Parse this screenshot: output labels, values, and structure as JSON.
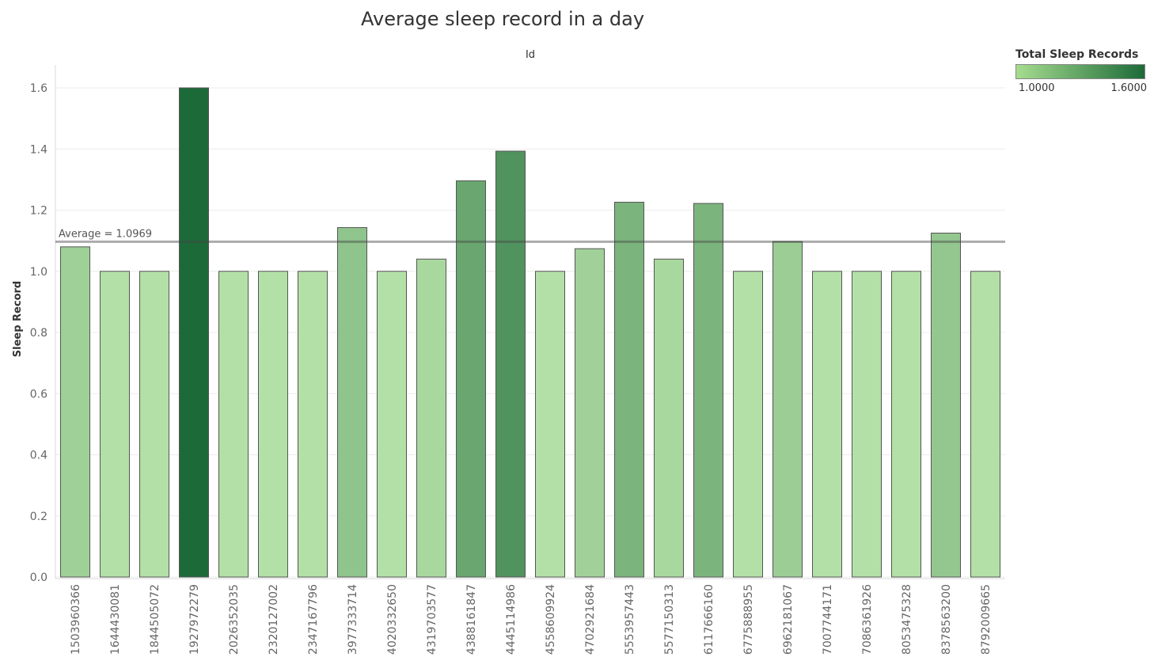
{
  "chart_data": {
    "type": "bar",
    "title": "Average sleep record in a day",
    "x_header": "Id",
    "ylabel": "Sleep Record",
    "ylim": [
      0,
      1.6
    ],
    "yticks": [
      "0.0",
      "0.2",
      "0.4",
      "0.6",
      "0.8",
      "1.0",
      "1.2",
      "1.4",
      "1.6"
    ],
    "grid": true,
    "categories": [
      "1503960366",
      "1644430081",
      "1844505072",
      "1927972279",
      "2026352035",
      "2320127002",
      "2347167796",
      "3977333714",
      "4020332650",
      "4319703577",
      "4388161847",
      "4445114986",
      "4558609924",
      "4702921684",
      "5553957443",
      "5577150313",
      "6117666160",
      "6775888955",
      "6962181067",
      "7007744171",
      "7086361926",
      "8053475328",
      "8378563200",
      "8792009665"
    ],
    "values": [
      1.08,
      1.0,
      1.0,
      1.6,
      1.0,
      1.0,
      1.0,
      1.143,
      1.0,
      1.04,
      1.296,
      1.393,
      1.0,
      1.074,
      1.226,
      1.04,
      1.222,
      1.0,
      1.097,
      1.0,
      1.0,
      1.0,
      1.125,
      1.0
    ],
    "reference_line": {
      "value": 1.0969,
      "label": "Average = 1.0969"
    },
    "color_legend": {
      "title": "Total Sleep Records",
      "min_label": "1.0000",
      "max_label": "1.6000",
      "min_value": 1.0,
      "max_value": 1.6,
      "color_min": "#b3e0a6",
      "color_max": "#1d6a39",
      "placement": "top-right"
    }
  }
}
